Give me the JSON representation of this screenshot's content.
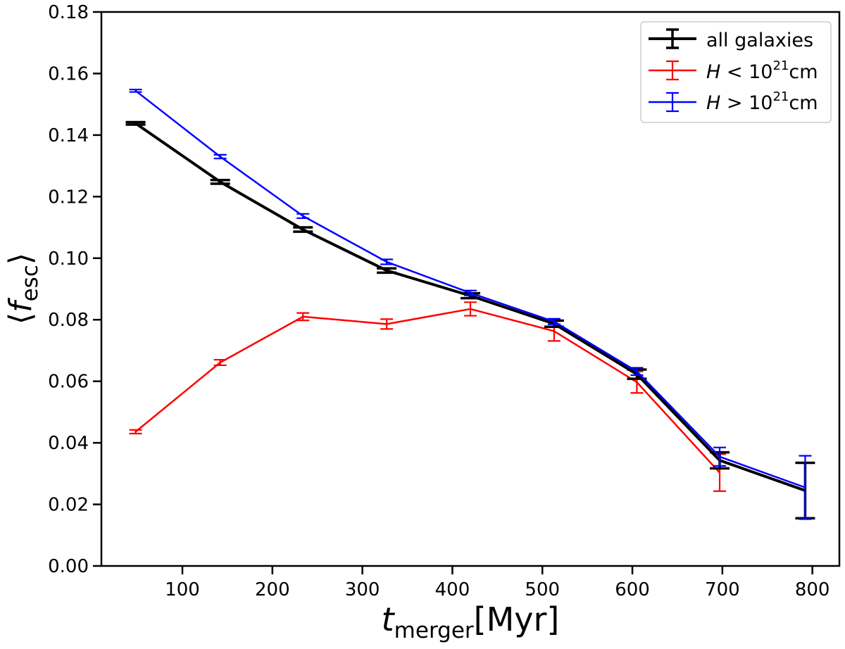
{
  "chart_data": {
    "type": "line",
    "title": "",
    "xlabel": {
      "main": "t",
      "sub": "merger",
      "rest": "[Myr]"
    },
    "ylabel": {
      "pre": "⟨",
      "main": "f",
      "sub": "esc",
      "post": "⟩"
    },
    "xlim": [
      10,
      830
    ],
    "ylim": [
      0.0,
      0.18
    ],
    "xticks": [
      100,
      200,
      300,
      400,
      500,
      600,
      700,
      800
    ],
    "yticks": [
      0.0,
      0.02,
      0.04,
      0.06,
      0.08,
      0.1,
      0.12,
      0.14,
      0.16,
      0.18
    ],
    "xtick_labels": [
      "100",
      "200",
      "300",
      "400",
      "500",
      "600",
      "700",
      "800"
    ],
    "ytick_labels": [
      "0.00",
      "0.02",
      "0.04",
      "0.06",
      "0.08",
      "0.10",
      "0.12",
      "0.14",
      "0.16",
      "0.18"
    ],
    "legend_position": "top-right",
    "series": [
      {
        "name": "all galaxies",
        "legend": {
          "text": "all galaxies"
        },
        "color": "#000000",
        "weight": "thick",
        "x": [
          48,
          142,
          234,
          327,
          420,
          513,
          605,
          697,
          792
        ],
        "y": [
          0.1438,
          0.1248,
          0.1093,
          0.096,
          0.0878,
          0.0787,
          0.0623,
          0.0343,
          0.0245
        ],
        "yerr": [
          0.0004,
          0.0006,
          0.0007,
          0.0007,
          0.0008,
          0.001,
          0.0015,
          0.0026,
          0.009
        ]
      },
      {
        "name": "H < 10^21 cm",
        "legend": {
          "italic": "H",
          "op": " < ",
          "base": "10",
          "exp": "21",
          "unit": "cm"
        },
        "color": "#ff0000",
        "weight": "thin",
        "x": [
          48,
          142,
          234,
          327,
          420,
          513,
          605,
          697
        ],
        "y": [
          0.0436,
          0.0661,
          0.081,
          0.0786,
          0.0835,
          0.0763,
          0.0597,
          0.0303
        ],
        "yerr": [
          0.0006,
          0.0009,
          0.0012,
          0.0016,
          0.0022,
          0.0032,
          0.0035,
          0.006
        ]
      },
      {
        "name": "H > 10^21 cm",
        "legend": {
          "italic": "H",
          "op": " > ",
          "base": "10",
          "exp": "21",
          "unit": "cm"
        },
        "color": "#0000ff",
        "weight": "thin",
        "x": [
          48,
          142,
          234,
          327,
          420,
          513,
          605,
          697,
          792
        ],
        "y": [
          0.1544,
          0.133,
          0.1137,
          0.0988,
          0.0887,
          0.0794,
          0.0632,
          0.0355,
          0.0255
        ],
        "yerr": [
          0.0004,
          0.0006,
          0.0007,
          0.0008,
          0.0008,
          0.0009,
          0.0012,
          0.003,
          0.0103
        ]
      }
    ]
  }
}
